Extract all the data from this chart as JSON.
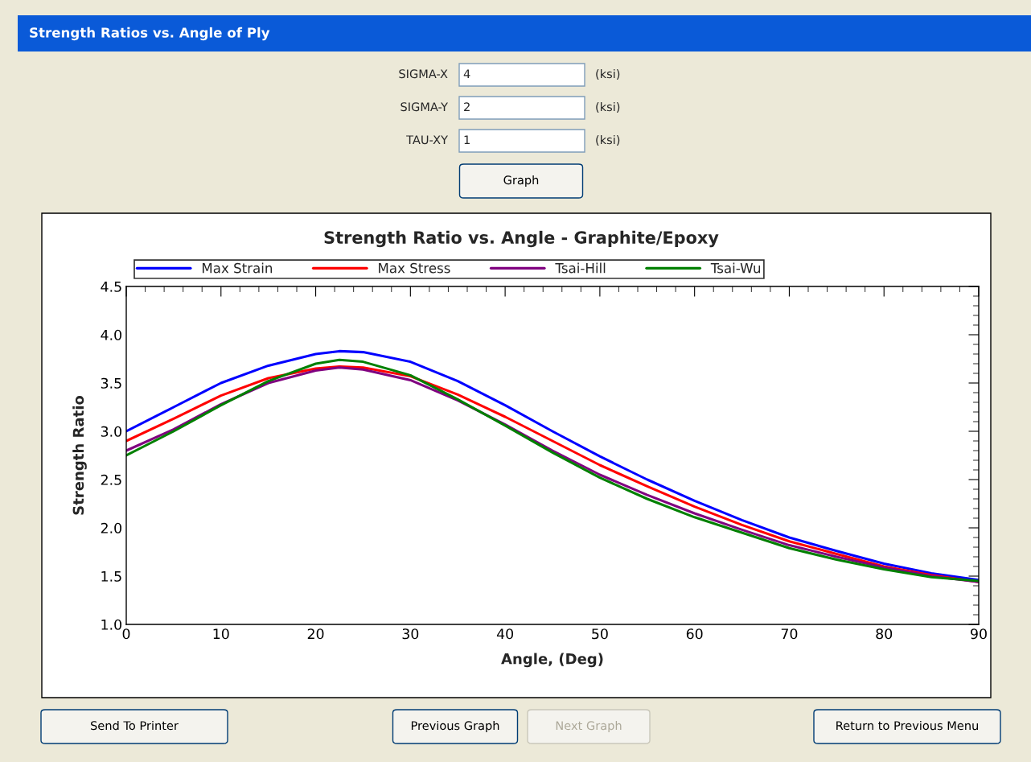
{
  "chart_data": {
    "type": "line",
    "title": "Strength Ratio vs. Angle - Graphite/Epoxy",
    "xlabel": "Angle, (Deg)",
    "ylabel": "Strength Ratio",
    "x": [
      0,
      5,
      10,
      15,
      20,
      22.5,
      25,
      30,
      35,
      40,
      45,
      50,
      55,
      60,
      65,
      70,
      75,
      80,
      85,
      90
    ],
    "series": [
      {
        "name": "Max Strain",
        "color": "#0000ff",
        "values": [
          3.0,
          3.25,
          3.5,
          3.68,
          3.8,
          3.83,
          3.82,
          3.72,
          3.52,
          3.27,
          3.0,
          2.74,
          2.5,
          2.28,
          2.08,
          1.9,
          1.76,
          1.63,
          1.53,
          1.46
        ]
      },
      {
        "name": "Max Stress",
        "color": "#ff0000",
        "values": [
          2.9,
          3.13,
          3.37,
          3.55,
          3.65,
          3.67,
          3.66,
          3.57,
          3.38,
          3.15,
          2.9,
          2.65,
          2.43,
          2.22,
          2.03,
          1.86,
          1.73,
          1.6,
          1.51,
          1.44
        ]
      },
      {
        "name": "Tsai-Hill",
        "color": "#800080",
        "values": [
          2.8,
          3.02,
          3.28,
          3.5,
          3.63,
          3.66,
          3.64,
          3.53,
          3.32,
          3.07,
          2.8,
          2.55,
          2.34,
          2.15,
          1.98,
          1.82,
          1.7,
          1.59,
          1.5,
          1.44
        ]
      },
      {
        "name": "Tsai-Wu",
        "color": "#008000",
        "values": [
          2.75,
          3.0,
          3.27,
          3.52,
          3.7,
          3.74,
          3.72,
          3.58,
          3.33,
          3.06,
          2.78,
          2.52,
          2.3,
          2.11,
          1.95,
          1.79,
          1.67,
          1.57,
          1.49,
          1.45
        ]
      }
    ],
    "xlim": [
      0,
      90
    ],
    "xticks": [
      0,
      10,
      20,
      30,
      40,
      50,
      60,
      70,
      80,
      90
    ],
    "ylim": [
      1.0,
      4.5
    ],
    "yticks": [
      {
        "value": 1,
        "label": "1.0"
      },
      1.5,
      {
        "value": 2,
        "label": "2.0"
      },
      2.5,
      {
        "value": 3,
        "label": "3.0"
      },
      3.5,
      {
        "value": 4,
        "label": "4.0"
      },
      4.5
    ],
    "grid": false,
    "legend": "top",
    "marker": "none",
    "line_style": "solid",
    "annotations": [
      "Strength Ratios vs. Angle of Ply",
      "SIGMA-X",
      "4",
      "(ksi)",
      "SIGMA-Y",
      "2",
      "(ksi)",
      "TAU-XY",
      "1",
      "(ksi)",
      "Graph",
      "Send To Printer",
      "Previous Graph",
      "Next Graph",
      "Return to Previous Menu"
    ]
  }
}
